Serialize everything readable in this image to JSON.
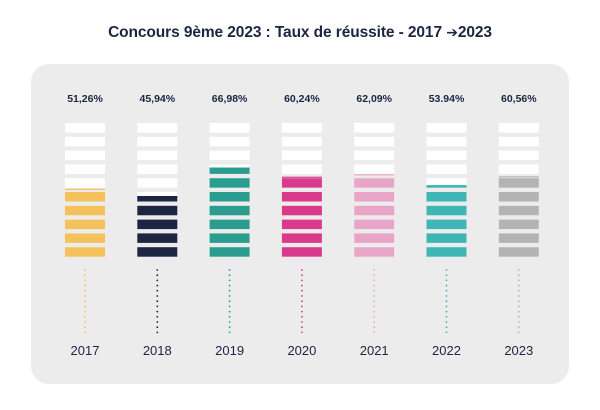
{
  "title_main": "Concours 9ème 2023 : Taux de réussite - 2017",
  "title_arrow": "➔",
  "title_end": "2023",
  "chart_data": {
    "type": "bar",
    "title": "Concours 9ème 2023 : Taux de réussite - 2017 ➔ 2023",
    "categories": [
      "2017",
      "2018",
      "2019",
      "2020",
      "2021",
      "2022",
      "2023"
    ],
    "values": [
      51.26,
      45.94,
      66.98,
      60.24,
      62.09,
      53.94,
      60.56
    ],
    "value_labels": [
      "51,26%",
      "45,94%",
      "66,98%",
      "60,24%",
      "62,09%",
      "53.94%",
      "60,56%"
    ],
    "colors": [
      "#f4c15b",
      "#1c2541",
      "#2a9d8f",
      "#d93a8c",
      "#e8a5c8",
      "#3fb6b6",
      "#b3b3b3"
    ],
    "ylim": [
      0,
      100
    ],
    "xlabel": "",
    "ylabel": "",
    "grid": false,
    "legend": "none"
  }
}
